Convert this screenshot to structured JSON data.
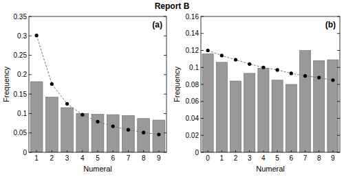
{
  "title": "Report B",
  "chart_data": [
    {
      "type": "bar",
      "annotations": [
        "(a)"
      ],
      "xlabel": "Numeral",
      "ylabel": "Frequency",
      "categories": [
        "1",
        "2",
        "3",
        "4",
        "5",
        "6",
        "7",
        "8",
        "9"
      ],
      "series": [
        {
          "type": "bar",
          "color": "#999999",
          "values": [
            0.182,
            0.142,
            0.115,
            0.1,
            0.098,
            0.097,
            0.095,
            0.087,
            0.083
          ]
        },
        {
          "type": "line",
          "color": "#000000",
          "marker": "circle",
          "line_style": "dashed",
          "values": [
            0.301,
            0.176,
            0.125,
            0.097,
            0.079,
            0.067,
            0.058,
            0.051,
            0.046
          ]
        }
      ],
      "ylim": [
        0,
        0.35
      ],
      "yticks": [
        0,
        0.05,
        0.1,
        0.15,
        0.2,
        0.25,
        0.3,
        0.35
      ],
      "grid": false
    },
    {
      "type": "bar",
      "annotations": [
        "(b)"
      ],
      "xlabel": "Numeral",
      "ylabel": "Frequency",
      "categories": [
        "0",
        "1",
        "2",
        "3",
        "4",
        "5",
        "6",
        "7",
        "8",
        "9"
      ],
      "series": [
        {
          "type": "bar",
          "color": "#999999",
          "values": [
            0.116,
            0.106,
            0.084,
            0.093,
            0.099,
            0.085,
            0.08,
            0.12,
            0.108,
            0.109
          ]
        },
        {
          "type": "line",
          "color": "#000000",
          "marker": "circle",
          "line_style": "dashed",
          "values": [
            0.12,
            0.114,
            0.109,
            0.104,
            0.1,
            0.097,
            0.093,
            0.09,
            0.088,
            0.085
          ]
        }
      ],
      "ylim": [
        0,
        0.16
      ],
      "yticks": [
        0,
        0.02,
        0.04,
        0.06,
        0.08,
        0.1,
        0.12,
        0.14,
        0.16
      ],
      "grid": false
    }
  ]
}
